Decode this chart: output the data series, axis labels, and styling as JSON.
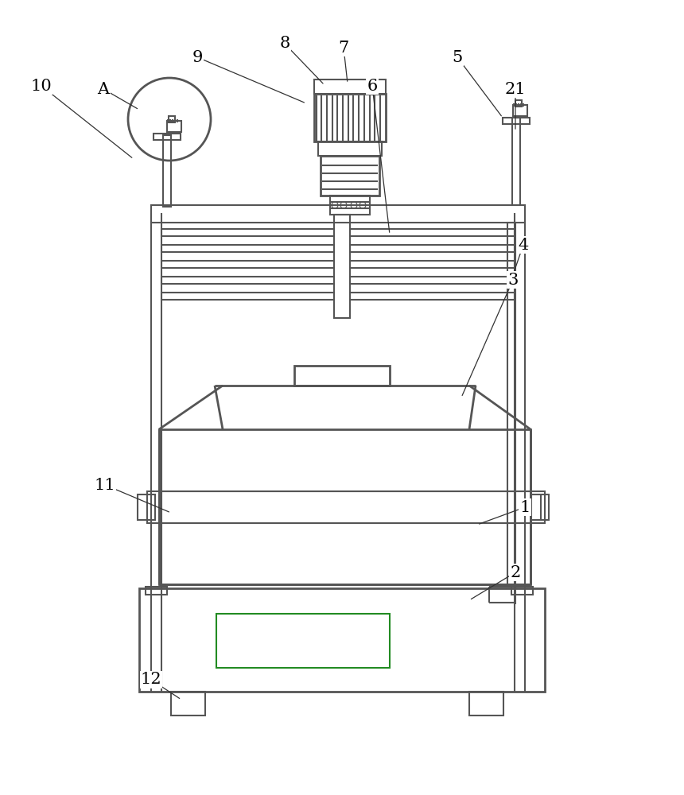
{
  "bg_color": "#ffffff",
  "lc": "#555555",
  "lw": 1.5,
  "lw2": 2.0,
  "green": "#228B22",
  "fig_width": 8.6,
  "fig_height": 10.0,
  "font_size": 15,
  "annotations": [
    [
      "A",
      130,
      112,
      175,
      138
    ],
    [
      "10",
      52,
      108,
      168,
      200
    ],
    [
      "9",
      248,
      72,
      385,
      130
    ],
    [
      "8",
      358,
      55,
      408,
      107
    ],
    [
      "7",
      432,
      60,
      437,
      105
    ],
    [
      "6",
      468,
      108,
      490,
      295
    ],
    [
      "5",
      575,
      72,
      632,
      148
    ],
    [
      "21",
      648,
      112,
      648,
      165
    ],
    [
      "4",
      658,
      308,
      640,
      360
    ],
    [
      "3",
      645,
      352,
      580,
      500
    ],
    [
      "1",
      660,
      638,
      600,
      660
    ],
    [
      "2",
      648,
      720,
      590,
      755
    ],
    [
      "11",
      132,
      610,
      215,
      645
    ],
    [
      "12",
      190,
      855,
      228,
      880
    ]
  ]
}
